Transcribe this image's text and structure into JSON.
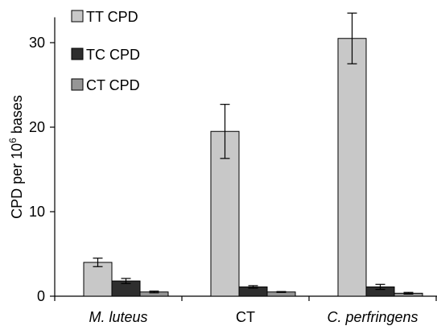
{
  "chart_data": {
    "type": "bar",
    "categories": [
      "M. luteus",
      "CT",
      "C. perfringens"
    ],
    "category_styles": [
      "italic",
      "normal",
      "italic"
    ],
    "series": [
      {
        "name": "TT CPD",
        "values": [
          4.0,
          19.5,
          30.5
        ],
        "errors": [
          0.5,
          3.2,
          3.0
        ],
        "color": "#c8c8c8"
      },
      {
        "name": "TC CPD",
        "values": [
          1.8,
          1.1,
          1.1
        ],
        "errors": [
          0.3,
          0.15,
          0.3
        ],
        "color": "#2e2e2e"
      },
      {
        "name": "CT CPD",
        "values": [
          0.5,
          0.5,
          0.35
        ],
        "errors": [
          0.1,
          0.05,
          0.1
        ],
        "color": "#969696"
      }
    ],
    "ylabel_main": "CPD per 10",
    "ylabel_sup": "6",
    "ylabel_tail": " bases",
    "ylim": [
      0,
      33
    ],
    "yticks": [
      0,
      10,
      20,
      30
    ],
    "legend_position": "top-left",
    "grid": false
  }
}
